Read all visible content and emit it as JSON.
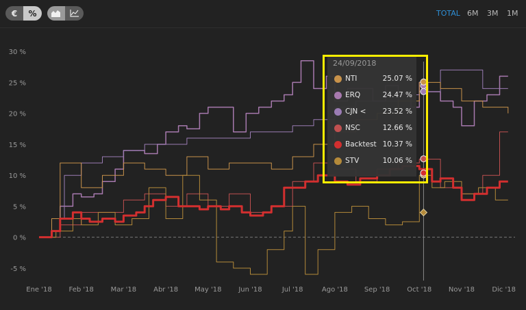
{
  "mode_group": {
    "currency_label": "€",
    "percent_label": "%",
    "selected": "percent"
  },
  "chart_type_group": {
    "area_icon": "area-chart-icon",
    "line_icon": "line-chart-icon",
    "selected": "area"
  },
  "ranges": [
    {
      "label": "TOTAL",
      "active": true
    },
    {
      "label": "6M",
      "active": false
    },
    {
      "label": "3M",
      "active": false
    },
    {
      "label": "1M",
      "active": false
    }
  ],
  "colors": {
    "background": "#222222",
    "accent": "#2e8fd6",
    "highlight_frame": "#ffef00"
  },
  "tooltip": {
    "date": "24/09/2018",
    "rows": [
      {
        "name": "NTI",
        "value": "25.07 %",
        "color": "#c8924a"
      },
      {
        "name": "ERQ",
        "value": "24.47 %",
        "color": "#a779ae"
      },
      {
        "name": "CJN <",
        "value": "23.52 %",
        "color": "#9b7cb4"
      },
      {
        "name": "NSC",
        "value": "12.66 %",
        "color": "#c05050"
      },
      {
        "name": "Backtest",
        "value": "10.37 %",
        "color": "#d22f2f"
      },
      {
        "name": "STV",
        "value": "10.06 %",
        "color": "#b58a3a"
      }
    ]
  },
  "chart_data": {
    "type": "line",
    "y_ticks": [
      "30 %",
      "25 %",
      "20 %",
      "15 %",
      "10 %",
      "5 %",
      "0 %",
      "-5 %"
    ],
    "x_ticks": [
      "Ene '18",
      "Feb '18",
      "Mar '18",
      "Abr '18",
      "May '18",
      "Jun '18",
      "Jul '18",
      "Ago '18",
      "Sep '18",
      "Oct '18",
      "Nov '18",
      "Dic '18"
    ],
    "ylim": [
      -7,
      33
    ],
    "xlim": [
      0,
      11.2
    ],
    "grid": false,
    "series": [
      {
        "name": "ERQ",
        "color": "#a779ae",
        "width": 1.5,
        "x": [
          0,
          0.3,
          0.5,
          0.8,
          1,
          1.3,
          1.5,
          1.8,
          2,
          2.3,
          2.5,
          2.8,
          3,
          3.3,
          3.5,
          3.8,
          4,
          4.3,
          4.6,
          4.9,
          5.2,
          5.5,
          5.8,
          6,
          6.2,
          6.5,
          6.8,
          7,
          7.3,
          7.6,
          7.9,
          8.2,
          8.5,
          8.8,
          9,
          9.2,
          9.5,
          9.8,
          10,
          10.3,
          10.6,
          10.9,
          11.1
        ],
        "y": [
          0,
          1,
          5,
          7,
          6.5,
          7,
          9,
          11,
          14,
          14,
          13.5,
          15,
          17,
          18,
          17.5,
          20,
          21,
          21,
          17,
          20,
          21,
          22,
          23,
          25,
          28.5,
          24,
          26,
          22,
          24,
          24,
          22,
          24.5,
          23,
          21,
          25,
          23.5,
          22,
          21,
          18,
          22,
          23,
          26,
          26
        ]
      },
      {
        "name": "CJN <",
        "color": "#9b7cb4",
        "width": 1,
        "x": [
          0,
          0.3,
          0.6,
          1,
          1.5,
          2,
          2.5,
          3,
          3.5,
          4,
          4.5,
          5,
          5.5,
          6,
          6.5,
          7,
          7.5,
          8,
          8.5,
          9,
          9.5,
          10,
          10.5,
          11.1
        ],
        "y": [
          0,
          3,
          10,
          12,
          13,
          14,
          15,
          15,
          16,
          16,
          16,
          17,
          17,
          18,
          19,
          21,
          22,
          22,
          23,
          23.5,
          27,
          27,
          24,
          24
        ]
      },
      {
        "name": "NTI",
        "color": "#c8924a",
        "width": 1,
        "x": [
          0,
          0.3,
          0.5,
          0.8,
          1,
          1.5,
          2,
          2.5,
          3,
          3.5,
          4,
          4.5,
          5,
          5.5,
          6,
          6.5,
          7,
          7.5,
          8,
          8.5,
          9,
          9.5,
          10,
          10.5,
          11.1
        ],
        "y": [
          0,
          3,
          12,
          12,
          8,
          10,
          12,
          11,
          10,
          13,
          11,
          12,
          12,
          11,
          13,
          15,
          17,
          19,
          20,
          22,
          25,
          24,
          22,
          21,
          20
        ]
      },
      {
        "name": "NSC",
        "color": "#c05050",
        "width": 1,
        "x": [
          0,
          0.5,
          1,
          1.5,
          2,
          2.5,
          3,
          3.5,
          4,
          4.5,
          5,
          5.5,
          6,
          6.5,
          7,
          7.5,
          8,
          8.5,
          9,
          9.5,
          10,
          10.5,
          10.9,
          11.1
        ],
        "y": [
          0,
          2,
          4,
          4,
          6,
          7,
          5,
          7,
          5,
          7,
          4,
          5,
          9,
          12,
          11,
          9,
          11,
          12,
          12.6,
          8,
          7,
          10,
          17,
          17
        ]
      },
      {
        "name": "STV",
        "color": "#b58a3a",
        "width": 1,
        "x": [
          0,
          0.4,
          0.8,
          1,
          1.4,
          1.8,
          2.2,
          2.6,
          3,
          3.4,
          3.8,
          4.2,
          4.6,
          5,
          5.4,
          5.8,
          6,
          6.3,
          6.6,
          7,
          7.4,
          7.8,
          8.2,
          8.6,
          9,
          9.3,
          9.6,
          10,
          10.4,
          10.8,
          11.1
        ],
        "y": [
          0,
          1,
          3,
          2,
          4,
          2,
          3,
          8,
          3,
          10,
          6,
          -4,
          -5,
          -6,
          -2,
          1,
          5,
          -6,
          -2,
          4,
          5,
          3,
          2,
          2.5,
          10,
          8,
          9,
          7,
          8,
          6,
          6
        ]
      },
      {
        "name": "Backtest",
        "color": "#d22f2f",
        "width": 3,
        "x": [
          0,
          0.3,
          0.5,
          0.8,
          1,
          1.2,
          1.5,
          1.8,
          2,
          2.3,
          2.5,
          2.7,
          3,
          3.3,
          3.5,
          3.8,
          4,
          4.3,
          4.5,
          4.8,
          5,
          5.3,
          5.5,
          5.8,
          6,
          6.3,
          6.6,
          7,
          7.3,
          7.6,
          8,
          8.3,
          8.6,
          9,
          9.3,
          9.5,
          9.8,
          10,
          10.3,
          10.6,
          10.9,
          11.1
        ],
        "y": [
          0,
          1,
          3,
          4,
          3,
          2.5,
          3,
          2.5,
          3.5,
          4,
          5,
          6,
          6.5,
          5,
          5,
          4.5,
          5,
          4.5,
          5,
          4,
          3.5,
          4,
          5,
          8,
          8,
          9,
          10,
          9,
          8.5,
          9.5,
          10,
          11,
          11.5,
          11,
          9,
          9.5,
          8,
          6,
          7,
          8,
          9,
          9
        ]
      }
    ],
    "tooltip_x": 9.1
  }
}
